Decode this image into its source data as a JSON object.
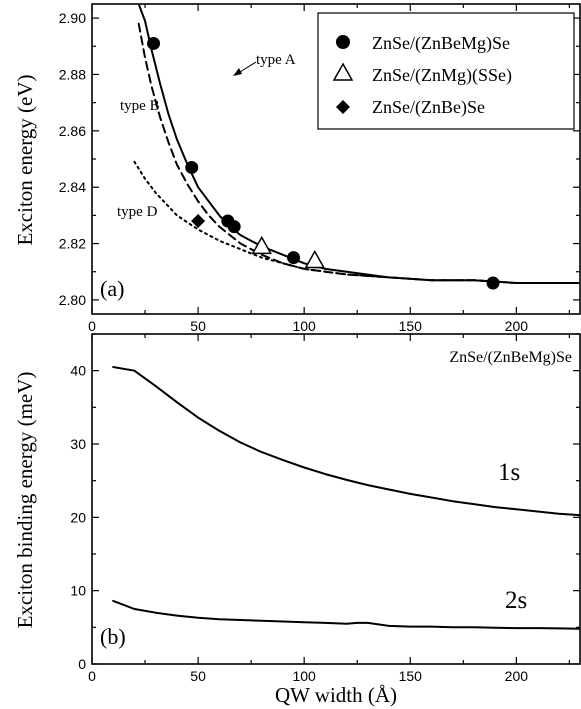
{
  "chart_data": [
    {
      "panel_label": "(a)",
      "type": "line",
      "ylabel": "Exciton energy (eV)",
      "xlim": [
        0,
        230
      ],
      "ylim": [
        2.795,
        2.905
      ],
      "x_ticks": [
        0,
        50,
        100,
        150,
        200
      ],
      "x_tick_labels": [
        "0",
        "50",
        "100",
        "150",
        "200"
      ],
      "y_ticks": [
        2.8,
        2.82,
        2.84,
        2.86,
        2.88,
        2.9
      ],
      "y_tick_labels": [
        "2.80",
        "2.82",
        "2.84",
        "2.86",
        "2.88",
        "2.90"
      ],
      "grid": false,
      "legend_position": "top-right",
      "curves": [
        {
          "label": "type A",
          "style": "solid",
          "x": [
            22,
            25,
            28,
            32,
            36,
            40,
            45,
            50,
            55,
            60,
            65,
            70,
            80,
            90,
            100,
            110,
            120,
            140,
            160,
            180,
            200,
            230
          ],
          "y": [
            2.905,
            2.899,
            2.889,
            2.877,
            2.866,
            2.857,
            2.848,
            2.84,
            2.835,
            2.83,
            2.826,
            2.823,
            2.819,
            2.816,
            2.813,
            2.811,
            2.81,
            2.808,
            2.807,
            2.807,
            2.806,
            2.806
          ]
        },
        {
          "label": "type B",
          "style": "dashed",
          "x": [
            22,
            25,
            28,
            32,
            36,
            40,
            45,
            50,
            55,
            60,
            65,
            70,
            80,
            90,
            100,
            110,
            120,
            140,
            160,
            180,
            200,
            230
          ],
          "y": [
            2.898,
            2.886,
            2.876,
            2.865,
            2.856,
            2.848,
            2.841,
            2.835,
            2.83,
            2.826,
            2.823,
            2.82,
            2.816,
            2.813,
            2.811,
            2.81,
            2.809,
            2.808,
            2.807,
            2.807,
            2.806,
            2.806
          ]
        },
        {
          "label": "type D",
          "style": "dotted",
          "x": [
            20,
            25,
            30,
            35,
            40,
            50,
            60,
            70,
            80,
            90,
            100,
            120,
            140,
            160,
            180,
            200,
            230
          ],
          "y": [
            2.849,
            2.843,
            2.838,
            2.834,
            2.83,
            2.825,
            2.821,
            2.818,
            2.815,
            2.813,
            2.811,
            2.809,
            2.808,
            2.807,
            2.807,
            2.806,
            2.806
          ]
        }
      ],
      "series": [
        {
          "name": "ZnSe/(ZnBeMg)Se",
          "marker": "filled-circle",
          "x": [
            29,
            47,
            64,
            67,
            95,
            189
          ],
          "y": [
            2.891,
            2.847,
            2.828,
            2.826,
            2.815,
            2.806
          ]
        },
        {
          "name": "ZnSe/(ZnMg)(SSe)",
          "marker": "open-triangle",
          "x": [
            80,
            105
          ],
          "y": [
            2.819,
            2.814
          ]
        },
        {
          "name": "ZnSe/(ZnBe)Se",
          "marker": "filled-diamond",
          "x": [
            50
          ],
          "y": [
            2.828
          ]
        }
      ]
    },
    {
      "panel_label": "(b)",
      "type": "line",
      "xlabel": "QW width (Å)",
      "ylabel": "Exciton binding energy (meV)",
      "xlim": [
        0,
        230
      ],
      "ylim": [
        0,
        45
      ],
      "x_ticks": [
        0,
        50,
        100,
        150,
        200
      ],
      "x_tick_labels": [
        "0",
        "50",
        "100",
        "150",
        "200"
      ],
      "y_ticks": [
        0,
        10,
        20,
        30,
        40
      ],
      "y_tick_labels": [
        "0",
        "10",
        "20",
        "30",
        "40"
      ],
      "grid": false,
      "corner_label": "ZnSe/(ZnBeMg)Se",
      "series": [
        {
          "name": "1s",
          "x": [
            10,
            20,
            30,
            40,
            50,
            60,
            70,
            80,
            90,
            100,
            110,
            120,
            130,
            140,
            150,
            160,
            170,
            180,
            190,
            200,
            210,
            220,
            230
          ],
          "y": [
            40.5,
            40.0,
            37.9,
            35.7,
            33.6,
            31.8,
            30.2,
            28.9,
            27.8,
            26.8,
            25.9,
            25.1,
            24.4,
            23.8,
            23.2,
            22.7,
            22.2,
            21.8,
            21.4,
            21.1,
            20.8,
            20.5,
            20.3
          ]
        },
        {
          "name": "2s",
          "x": [
            10,
            20,
            30,
            40,
            50,
            60,
            70,
            80,
            90,
            100,
            110,
            120,
            125,
            130,
            135,
            140,
            150,
            160,
            170,
            180,
            190,
            200,
            210,
            220,
            230
          ],
          "y": [
            8.6,
            7.5,
            7.0,
            6.6,
            6.3,
            6.1,
            6.0,
            5.9,
            5.8,
            5.7,
            5.6,
            5.5,
            5.6,
            5.6,
            5.4,
            5.2,
            5.1,
            5.1,
            5.0,
            5.0,
            4.95,
            4.9,
            4.9,
            4.85,
            4.8
          ]
        }
      ]
    }
  ]
}
